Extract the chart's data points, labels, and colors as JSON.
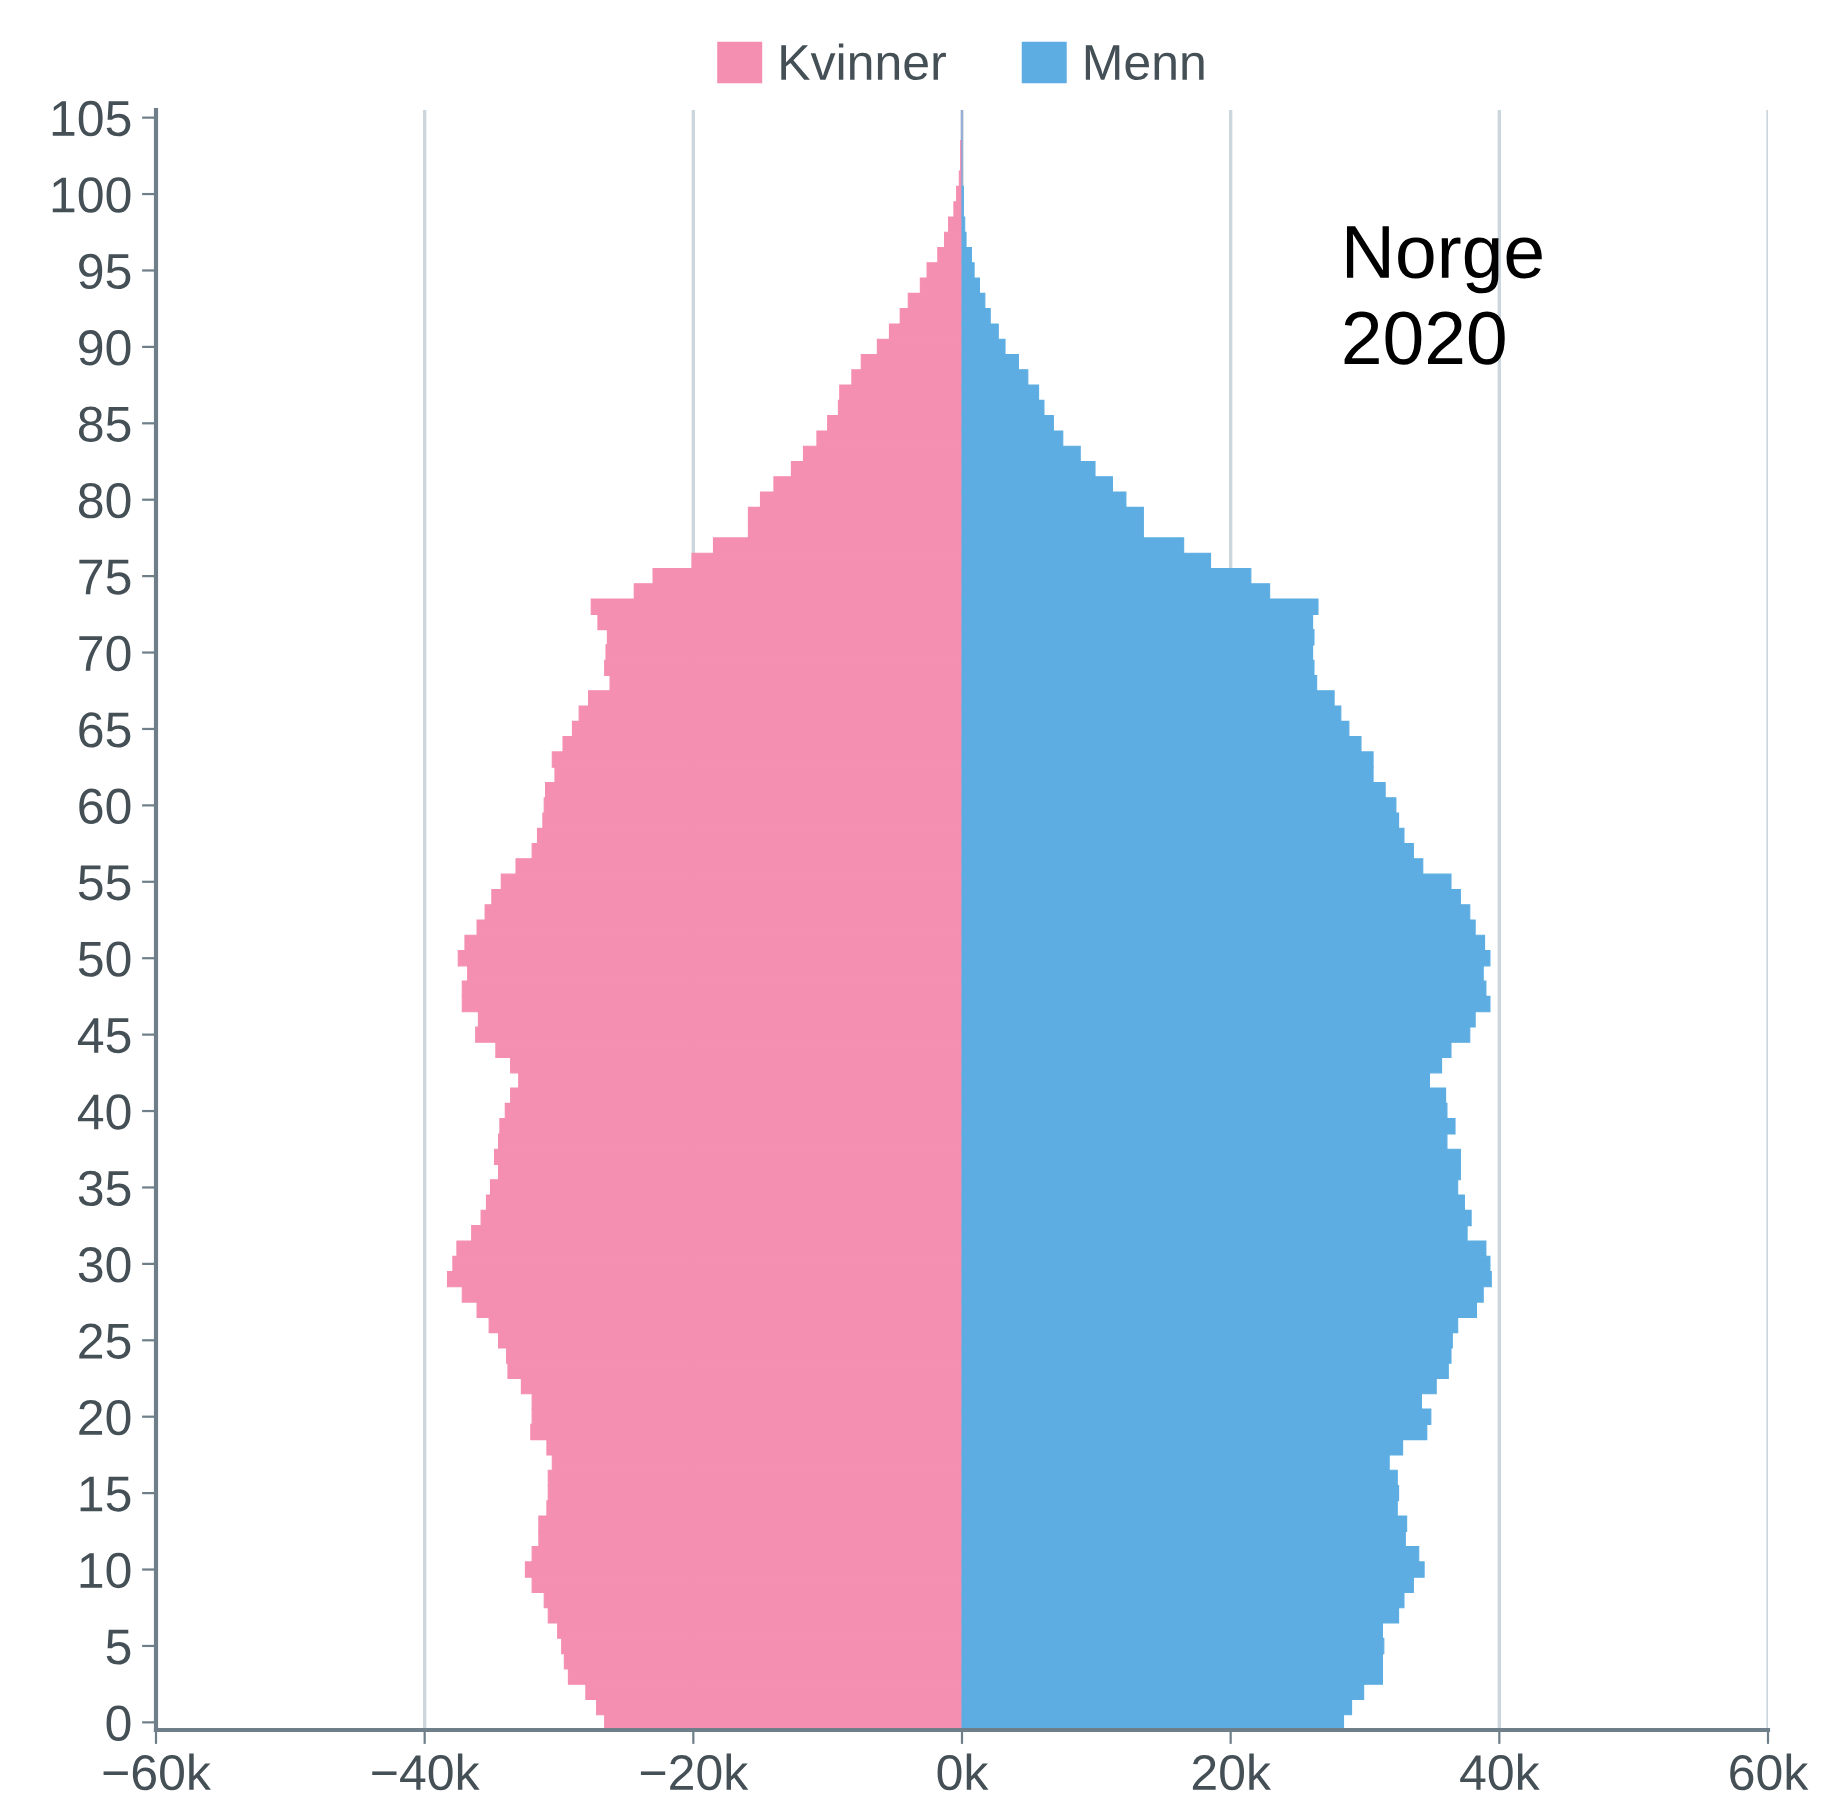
{
  "chart_data": {
    "type": "bar",
    "orientation": "horizontal",
    "stacked": true,
    "categories": [
      "105",
      null,
      null,
      null,
      null,
      "100",
      null,
      null,
      null,
      null,
      "95",
      null,
      null,
      null,
      null,
      "90",
      null,
      null,
      null,
      null,
      "85",
      null,
      null,
      null,
      null,
      "80",
      null,
      null,
      null,
      null,
      "75",
      null,
      null,
      null,
      null,
      "70",
      null,
      null,
      null,
      null,
      "65",
      null,
      null,
      null,
      null,
      "60",
      null,
      null,
      null,
      null,
      "55",
      null,
      null,
      null,
      null,
      "50",
      null,
      null,
      null,
      null,
      "45",
      null,
      null,
      null,
      null,
      "40",
      null,
      null,
      null,
      null,
      "35",
      null,
      null,
      null,
      null,
      "30",
      null,
      null,
      null,
      null,
      "25",
      null,
      null,
      null,
      null,
      "20",
      null,
      null,
      null,
      null,
      "15",
      null,
      null,
      null,
      null,
      "10",
      null,
      null,
      null,
      null,
      "5",
      null,
      null,
      null,
      null,
      "0"
    ],
    "series": [
      {
        "name": "Kvinner",
        "color": "#f48fb1",
        "values": [
          0,
          0,
          -0.1,
          -0.1,
          -0.2,
          -0.4,
          -0.6,
          -1.0,
          -1.3,
          -1.8,
          -2.6,
          -3.1,
          -4.0,
          -4.6,
          -5.4,
          -6.3,
          -7.5,
          -8.2,
          -9.1,
          -9.2,
          -10.0,
          -10.8,
          -11.8,
          -12.7,
          -14.0,
          -15.0,
          -15.9,
          -15.9,
          -18.5,
          -20.1,
          -23.0,
          -24.4,
          -27.6,
          -27.1,
          -26.4,
          -26.5,
          -26.6,
          -26.2,
          -27.8,
          -28.5,
          -29.0,
          -29.7,
          -30.5,
          -30.3,
          -31.0,
          -31.1,
          -31.2,
          -31.6,
          -32.0,
          -33.2,
          -34.3,
          -35.0,
          -35.5,
          -36.1,
          -37.0,
          -37.5,
          -36.8,
          -37.2,
          -37.2,
          -36.0,
          -36.2,
          -34.7,
          -33.6,
          -33.0,
          -33.6,
          -34.0,
          -34.4,
          -34.5,
          -34.8,
          -34.5,
          -35.1,
          -35.4,
          -35.8,
          -36.5,
          -37.6,
          -37.9,
          -38.3,
          -37.2,
          -36.1,
          -35.2,
          -34.5,
          -33.9,
          -33.8,
          -32.8,
          -32.0,
          -32.0,
          -32.1,
          -30.9,
          -30.5,
          -30.8,
          -30.8,
          -30.9,
          -31.5,
          -31.5,
          -32.0,
          -32.5,
          -32.0,
          -31.1,
          -30.8,
          -30.1,
          -29.8,
          -29.6,
          -29.3,
          -28.0,
          -27.2,
          -26.6
        ]
      },
      {
        "name": "Menn",
        "color": "#5dade2",
        "values": [
          0,
          0,
          0,
          0,
          0,
          0.1,
          0.1,
          0.2,
          0.3,
          0.7,
          0.9,
          1.3,
          1.7,
          2.1,
          2.7,
          3.2,
          4.2,
          4.9,
          5.7,
          6.1,
          6.8,
          7.5,
          8.8,
          9.9,
          11.2,
          12.2,
          13.5,
          13.5,
          16.5,
          18.5,
          21.5,
          22.9,
          26.5,
          26.1,
          26.2,
          26.1,
          26.2,
          26.4,
          27.7,
          28.2,
          28.8,
          29.7,
          30.6,
          30.6,
          31.5,
          32.3,
          32.5,
          32.9,
          33.6,
          34.3,
          36.4,
          37.1,
          37.8,
          38.2,
          38.9,
          39.3,
          38.8,
          39.0,
          39.3,
          38.2,
          37.8,
          36.4,
          35.7,
          34.8,
          36.0,
          36.1,
          36.7,
          36.1,
          37.1,
          37.1,
          36.9,
          37.4,
          37.9,
          37.6,
          39.0,
          39.3,
          39.4,
          38.8,
          38.3,
          36.9,
          36.5,
          36.4,
          36.2,
          35.3,
          34.2,
          34.9,
          34.6,
          32.8,
          31.8,
          32.4,
          32.5,
          32.4,
          33.1,
          33.0,
          34.0,
          34.4,
          33.6,
          32.9,
          32.5,
          31.3,
          31.4,
          31.3,
          31.3,
          29.9,
          29.0,
          28.4
        ]
      }
    ],
    "xlim": [
      -60,
      60
    ],
    "xticks": [
      {
        "value": -60,
        "label": "−60k"
      },
      {
        "value": -40,
        "label": "−40k"
      },
      {
        "value": -20,
        "label": "−20k"
      },
      {
        "value": 0,
        "label": "0k"
      },
      {
        "value": 20,
        "label": "20k"
      },
      {
        "value": 40,
        "label": "40k"
      },
      {
        "value": 60,
        "label": "60k"
      }
    ],
    "grid": "x",
    "legend": "top",
    "annotations": [
      "Norge\n2020"
    ]
  }
}
